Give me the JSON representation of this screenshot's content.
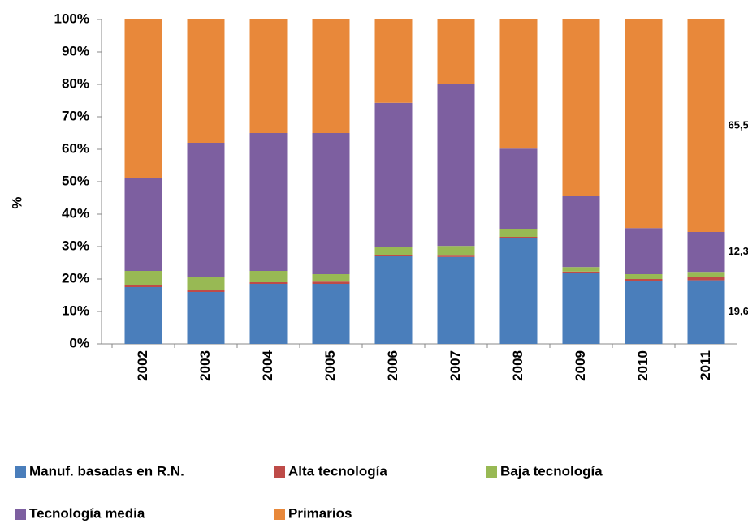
{
  "chart_data": {
    "type": "stacked_bar",
    "y_label": "%",
    "categories": [
      "2002",
      "2003",
      "2004",
      "2005",
      "2006",
      "2007",
      "2008",
      "2009",
      "2010",
      "2011"
    ],
    "series": [
      {
        "name": "Manuf. basadas en R.N.",
        "color": "#4a7ebb",
        "values": [
          17.5,
          16,
          18.5,
          18.5,
          27,
          26.8,
          32.5,
          21.8,
          19.5,
          19.6
        ],
        "value_labels": [
          null,
          null,
          null,
          null,
          null,
          null,
          null,
          null,
          null,
          "19,6"
        ]
      },
      {
        "name": "Alta tecnología",
        "color": "#be4b48",
        "values": [
          0.7,
          0.5,
          0.5,
          0.7,
          0.5,
          0.4,
          0.5,
          0.5,
          0.5,
          0.9
        ]
      },
      {
        "name": "Baja tecnología",
        "color": "#98b954",
        "values": [
          4.3,
          4.2,
          3.5,
          2.3,
          2.3,
          3,
          2.5,
          1.4,
          1.5,
          1.7
        ]
      },
      {
        "name": "Tecnología media",
        "color": "#7d5fa0",
        "values": [
          28.5,
          41.3,
          42.5,
          43.5,
          44.5,
          50,
          24.7,
          21.8,
          14.2,
          12.3
        ],
        "value_labels": [
          null,
          null,
          null,
          null,
          null,
          null,
          null,
          null,
          null,
          "12,3"
        ]
      },
      {
        "name": "Primarios",
        "color": "#e8883a",
        "values": [
          49,
          38,
          35,
          35,
          25.7,
          19.8,
          39.8,
          54.5,
          64.3,
          65.5
        ],
        "value_labels": [
          null,
          null,
          null,
          null,
          null,
          null,
          null,
          null,
          null,
          "65,5"
        ]
      }
    ],
    "ylim": [
      0,
      100
    ],
    "yticks": [
      {
        "value": 0,
        "label": "0%"
      },
      {
        "value": 10,
        "label": "10%"
      },
      {
        "value": 20,
        "label": "20%"
      },
      {
        "value": 30,
        "label": "30%"
      },
      {
        "value": 40,
        "label": "40%"
      },
      {
        "value": 50,
        "label": "50%"
      },
      {
        "value": 60,
        "label": "60%"
      },
      {
        "value": 70,
        "label": "70%"
      },
      {
        "value": 80,
        "label": "80%"
      },
      {
        "value": 90,
        "label": "90%"
      },
      {
        "value": 100,
        "label": "100%"
      }
    ],
    "grid": false
  }
}
